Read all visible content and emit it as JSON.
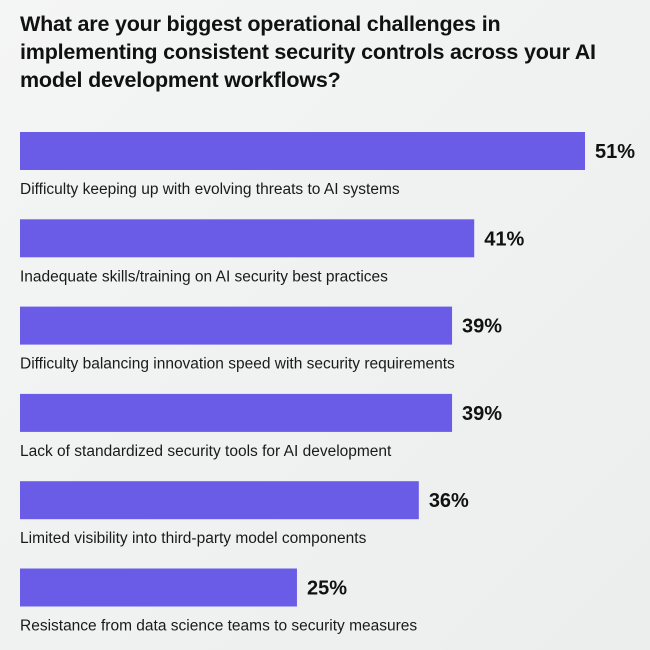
{
  "chart_data": {
    "type": "bar",
    "orientation": "horizontal",
    "title": "What are your biggest operational challenges in implementing consistent security controls across your AI model development workflows?",
    "categories": [
      "Difficulty keeping up with evolving threats to AI systems",
      "Inadequate skills/training on AI security best practices",
      "Difficulty balancing innovation speed with security requirements",
      "Lack of standardized security tools for AI development",
      "Limited visibility into third-party model components",
      "Resistance from data science teams to security measures"
    ],
    "values": [
      51,
      41,
      39,
      39,
      36,
      25
    ],
    "value_labels": [
      "51%",
      "41%",
      "39%",
      "39%",
      "36%",
      "25%"
    ],
    "unit": "%",
    "bar_color": "#6b5ce7",
    "grid": false,
    "axes_visible": false
  }
}
